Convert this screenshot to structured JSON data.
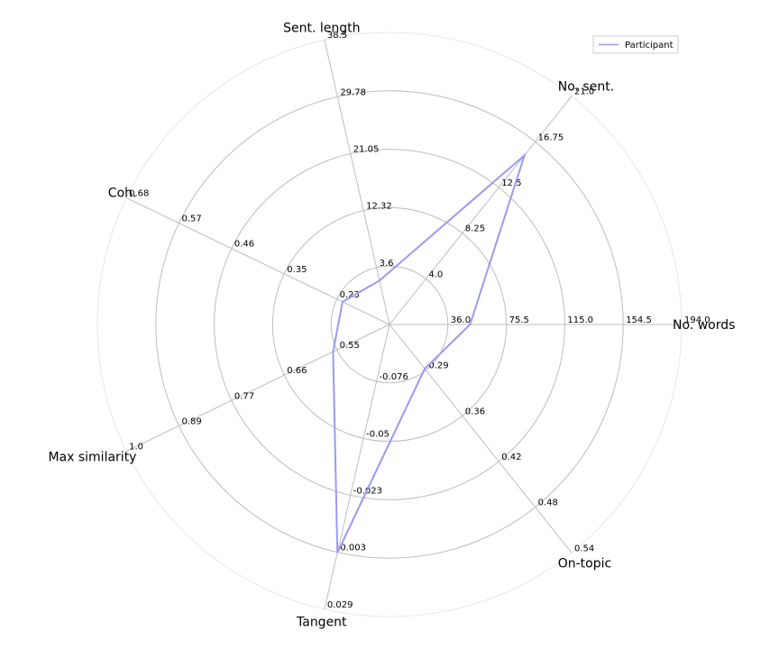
{
  "chart_data": {
    "type": "radar",
    "axes": [
      {
        "name": "No. words",
        "ticks": [
          "36.0",
          "75.5",
          "115.0",
          "154.5",
          "194.0"
        ],
        "min": -3.5,
        "max": 194.0
      },
      {
        "name": "No. sent.",
        "ticks": [
          "4.0",
          "8.25",
          "12.5",
          "16.75",
          "21.0"
        ],
        "min": -0.25,
        "max": 21.0
      },
      {
        "name": "Sent. length",
        "ticks": [
          "3.6",
          "12.32",
          "21.05",
          "29.78",
          "38.5"
        ],
        "min": -5.12,
        "max": 38.5
      },
      {
        "name": "Coh.",
        "ticks": [
          "0.23",
          "0.35",
          "0.46",
          "0.57",
          "0.68"
        ],
        "min": 0.12,
        "max": 0.68
      },
      {
        "name": "Max similarity",
        "ticks": [
          "0.55",
          "0.66",
          "0.77",
          "0.89",
          "1.0"
        ],
        "min": 0.44,
        "max": 1.0
      },
      {
        "name": "Tangent",
        "ticks": [
          "-0.076",
          "-0.05",
          "-0.023",
          "0.003",
          "0.029"
        ],
        "min": -0.102,
        "max": 0.029
      },
      {
        "name": "On-topic",
        "ticks": [
          "0.29",
          "0.36",
          "0.42",
          "0.48",
          "0.54"
        ],
        "min": 0.23,
        "max": 0.54
      }
    ],
    "series": [
      {
        "name": "Participant",
        "color": "#9a9af5",
        "values": [
          51.0,
          15.5,
          1.6,
          0.22,
          0.56,
          0.003,
          0.29
        ]
      }
    ],
    "ring_count": 5,
    "grid": true,
    "legend": {
      "placement": "top-right",
      "entries": [
        "Participant"
      ]
    }
  }
}
